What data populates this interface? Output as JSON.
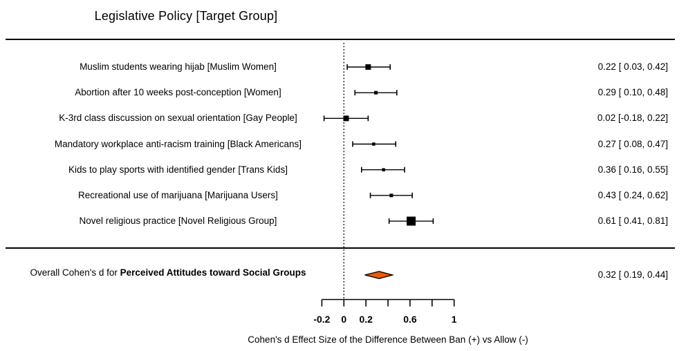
{
  "title": "Legislative Policy [Target Group]",
  "chart_data": {
    "type": "forest",
    "title": "Legislative Policy [Target Group]",
    "reference_line": 0,
    "axis": {
      "title": "Cohen's d Effect Size of the Difference Between Ban (+) vs Allow (-)",
      "range": [
        -0.2,
        1
      ],
      "ticks": [
        {
          "v": -0.2,
          "label": "-0.2"
        },
        {
          "v": 0,
          "label": "0"
        },
        {
          "v": 0.2,
          "label": "0.2"
        },
        {
          "v": 0.4,
          "label": ""
        },
        {
          "v": 0.6,
          "label": "0.6"
        },
        {
          "v": 0.8,
          "label": ""
        },
        {
          "v": 1,
          "label": "1"
        }
      ]
    },
    "rows": [
      {
        "label": "Muslim students wearing hijab [Muslim Women]",
        "estimate": 0.22,
        "ci_lower": 0.03,
        "ci_upper": 0.42,
        "display": "0.22 [ 0.03, 0.42]",
        "marker_px": 8
      },
      {
        "label": "Abortion after 10 weeks post-conception [Women]",
        "estimate": 0.29,
        "ci_lower": 0.1,
        "ci_upper": 0.48,
        "display": "0.29 [ 0.10, 0.48]",
        "marker_px": 5
      },
      {
        "label": "K-3rd class discussion on sexual orientation [Gay People]",
        "estimate": 0.02,
        "ci_lower": -0.18,
        "ci_upper": 0.22,
        "display": "0.02 [-0.18, 0.22]",
        "marker_px": 8
      },
      {
        "label": "Mandatory workplace anti-racism training [Black Americans]",
        "estimate": 0.27,
        "ci_lower": 0.08,
        "ci_upper": 0.47,
        "display": "0.27 [ 0.08, 0.47]",
        "marker_px": 4.5
      },
      {
        "label": "Kids to play sports with identified gender [Trans Kids]",
        "estimate": 0.36,
        "ci_lower": 0.16,
        "ci_upper": 0.55,
        "display": "0.36 [ 0.16, 0.55]",
        "marker_px": 4.5
      },
      {
        "label": "Recreational use of marijuana [Marijuana Users]",
        "estimate": 0.43,
        "ci_lower": 0.24,
        "ci_upper": 0.62,
        "display": "0.43 [ 0.24, 0.62]",
        "marker_px": 5
      },
      {
        "label": "Novel religious practice [Novel Religious Group]",
        "estimate": 0.61,
        "ci_lower": 0.41,
        "ci_upper": 0.81,
        "display": "0.61 [ 0.41, 0.81]",
        "marker_px": 13
      }
    ],
    "overall": {
      "label_prefix": "Overall Cohen's d for ",
      "label_bold": "Perceived Attitudes toward Social Groups",
      "estimate": 0.32,
      "ci_lower": 0.19,
      "ci_upper": 0.44,
      "display": "0.32 [ 0.19, 0.44]"
    },
    "colors": {
      "text": "#000000",
      "line": "#000000",
      "marker": "#000000",
      "diamond_fill": "#EE5A00",
      "diamond_stroke": "#000000"
    }
  }
}
